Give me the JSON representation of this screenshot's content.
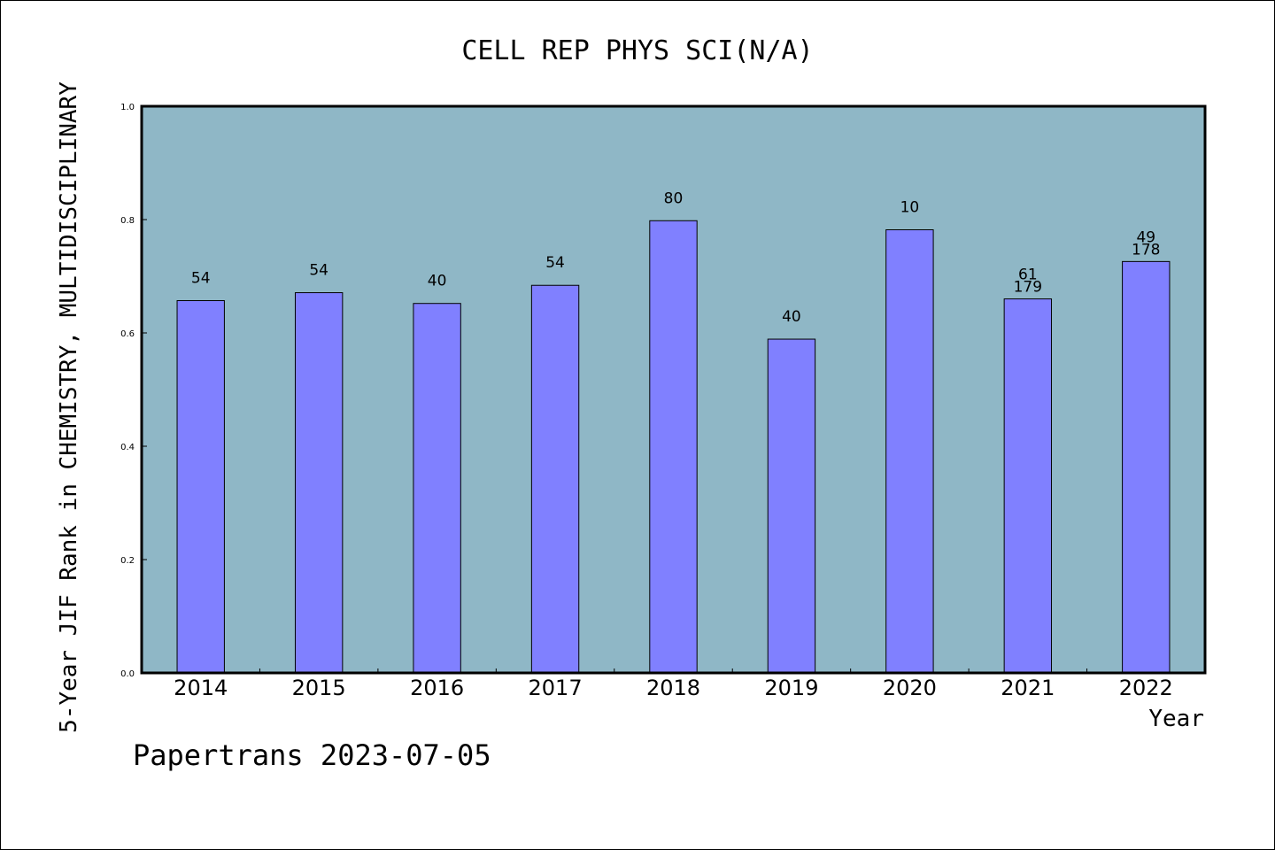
{
  "chart_data": {
    "type": "bar",
    "title": "CELL REP PHYS SCI(N/A)",
    "xlabel": "Year",
    "ylabel": "5-Year JIF Rank in CHEMISTRY, MULTIDISCIPLINARY",
    "categories": [
      "2014",
      "2015",
      "2016",
      "2017",
      "2018",
      "2019",
      "2020",
      "2021",
      "2022"
    ],
    "values": [
      0.657,
      0.671,
      0.652,
      0.684,
      0.798,
      0.589,
      0.782,
      0.66,
      0.726
    ],
    "bar_labels": [
      [
        "54"
      ],
      [
        "54"
      ],
      [
        "40"
      ],
      [
        "54"
      ],
      [
        "80"
      ],
      [
        "40"
      ],
      [
        "10"
      ],
      [
        "61",
        "179"
      ],
      [
        "49",
        "178"
      ]
    ],
    "ylim": [
      0,
      1.0
    ],
    "yticks": [
      "0.0",
      "0.2",
      "0.4",
      "0.6",
      "0.8",
      "1.0"
    ],
    "grid": false,
    "colors": {
      "background": "#8fb7c6",
      "bar": "#8080ff",
      "bar_edge": "#000000"
    }
  },
  "watermark": "Papertrans 2023-07-05"
}
